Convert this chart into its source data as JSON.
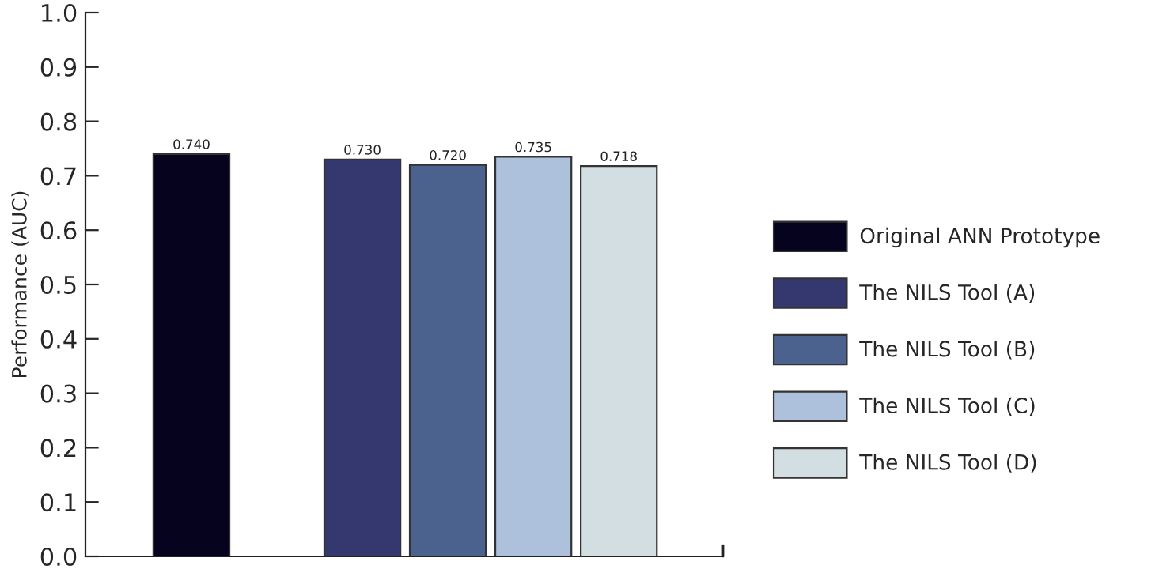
{
  "chart_data": {
    "type": "bar",
    "ylabel": "Performance (AUC)",
    "categories": [
      null,
      null,
      null,
      null,
      null,
      null
    ],
    "series": [
      {
        "name": "Original ANN Prototype",
        "color": "#06031f",
        "values": [
          0.74,
          null,
          null,
          null,
          null,
          null
        ],
        "value_labels": [
          "0.740",
          null,
          null,
          null,
          null,
          null
        ]
      },
      {
        "name": "The NILS Tool (A)",
        "color": "#34386e",
        "values": [
          null,
          null,
          0.73,
          null,
          null,
          null
        ],
        "value_labels": [
          null,
          null,
          "0.730",
          null,
          null,
          null
        ]
      },
      {
        "name": "The NILS Tool (B)",
        "color": "#4b628f",
        "values": [
          null,
          null,
          null,
          0.72,
          null,
          null
        ],
        "value_labels": [
          null,
          null,
          null,
          "0.720",
          null,
          null
        ]
      },
      {
        "name": "The NILS Tool (C)",
        "color": "#aec1dc",
        "values": [
          null,
          null,
          null,
          null,
          0.735,
          null
        ],
        "value_labels": [
          null,
          null,
          null,
          null,
          "0.735",
          null
        ]
      },
      {
        "name": "The NILS Tool (D)",
        "color": "#d3dee2",
        "values": [
          null,
          null,
          null,
          null,
          null,
          0.718
        ],
        "value_labels": [
          null,
          null,
          null,
          null,
          null,
          "0.718"
        ]
      }
    ],
    "ylim": [
      0,
      1.0
    ],
    "yticks": [
      {
        "value": 0,
        "label": "0.0"
      },
      {
        "value": 0.1,
        "label": "0.1"
      },
      {
        "value": 0.2,
        "label": "0.2"
      },
      {
        "value": 0.3,
        "label": "0.3"
      },
      {
        "value": 0.4,
        "label": "0.4"
      },
      {
        "value": 0.5,
        "label": "0.5"
      },
      {
        "value": 0.6,
        "label": "0.6"
      },
      {
        "value": 0.7,
        "label": "0.7"
      },
      {
        "value": 0.8,
        "label": "0.8"
      },
      {
        "value": 0.9,
        "label": "0.9"
      },
      {
        "value": 1.0,
        "label": "1.0"
      }
    ],
    "legend": "right",
    "grid": false
  }
}
